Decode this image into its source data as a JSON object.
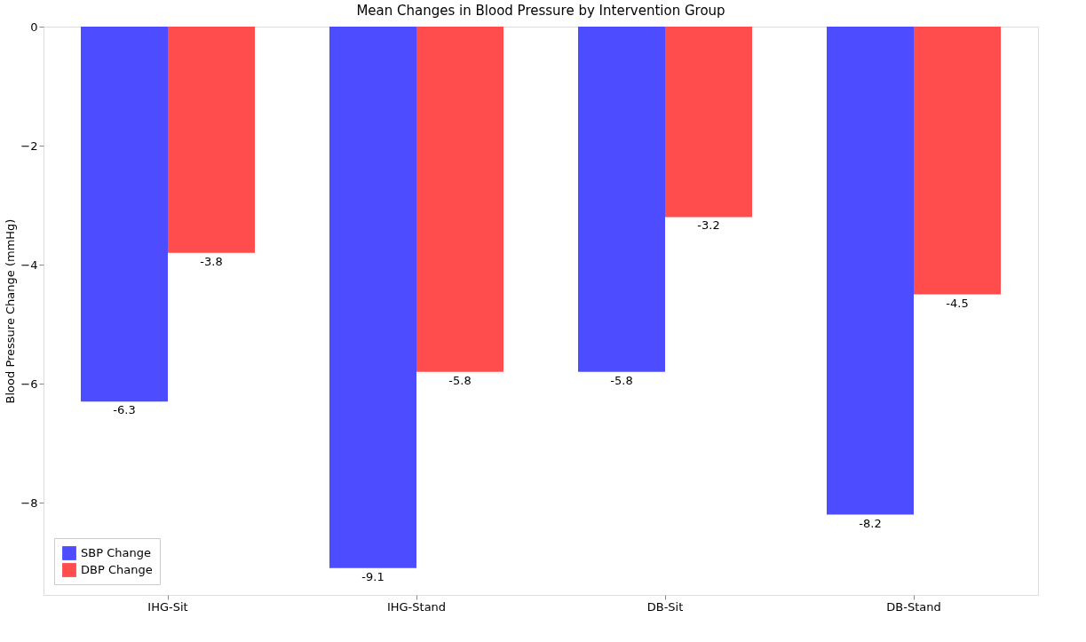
{
  "chart_data": {
    "type": "bar",
    "title": "Mean Changes in Blood Pressure by Intervention Group",
    "ylabel": "Blood Pressure Change (mmHg)",
    "categories": [
      "IHG-Sit",
      "IHG-Stand",
      "DB-Sit",
      "DB-Stand"
    ],
    "series": [
      {
        "name": "SBP Change",
        "color": "#4d4dff",
        "values": [
          -6.3,
          -9.1,
          -5.8,
          -8.2
        ]
      },
      {
        "name": "DBP Change",
        "color": "#ff4d4d",
        "values": [
          -3.8,
          -5.8,
          -3.2,
          -4.5
        ]
      }
    ],
    "ylim": [
      -9.55,
      0
    ],
    "yticks": [
      {
        "value": -8,
        "label": "−8"
      },
      {
        "value": -6,
        "label": "−6"
      },
      {
        "value": -4,
        "label": "−4"
      },
      {
        "value": -2,
        "label": "−2"
      },
      0
    ],
    "data_labels": true,
    "legend": "bottom left",
    "grid": false
  }
}
